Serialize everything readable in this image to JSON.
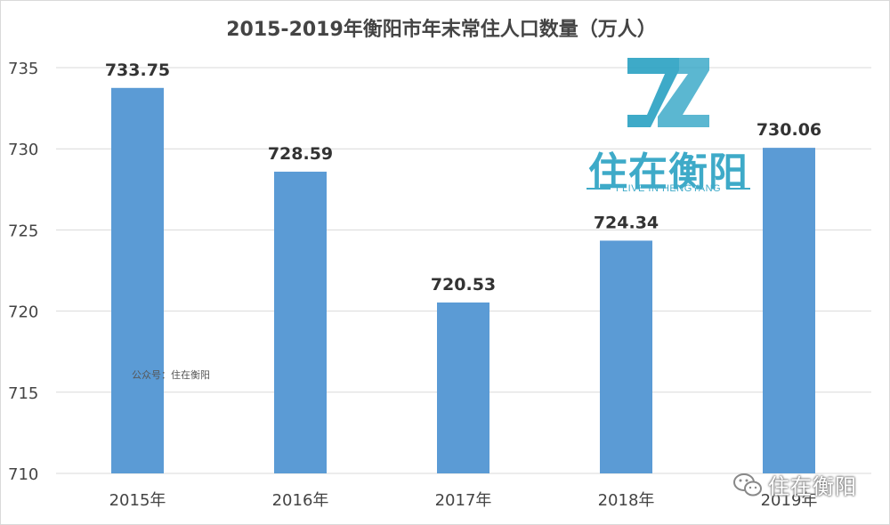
{
  "chart_data": {
    "type": "bar",
    "title": "2015-2019年衡阳市年末常住人口数量（万人）",
    "categories": [
      "2015年",
      "2016年",
      "2017年",
      "2018年",
      "2019年"
    ],
    "values": [
      733.75,
      728.59,
      720.53,
      724.34,
      730.06
    ],
    "value_labels": [
      "733.75",
      "728.59",
      "720.53",
      "724.34",
      "730.06"
    ],
    "ylim": [
      710,
      735
    ],
    "yticks": [
      735,
      730,
      725,
      720,
      715,
      710
    ],
    "grid": true,
    "bar_color": "#5b9bd5"
  },
  "watermarks": {
    "small": "公众号：住在衡阳",
    "corner": "住在衡阳"
  },
  "logo": {
    "name": "住在衡阳",
    "subtitle": "I LIVE IN HENGYANG",
    "color": "#2ea3c4"
  }
}
